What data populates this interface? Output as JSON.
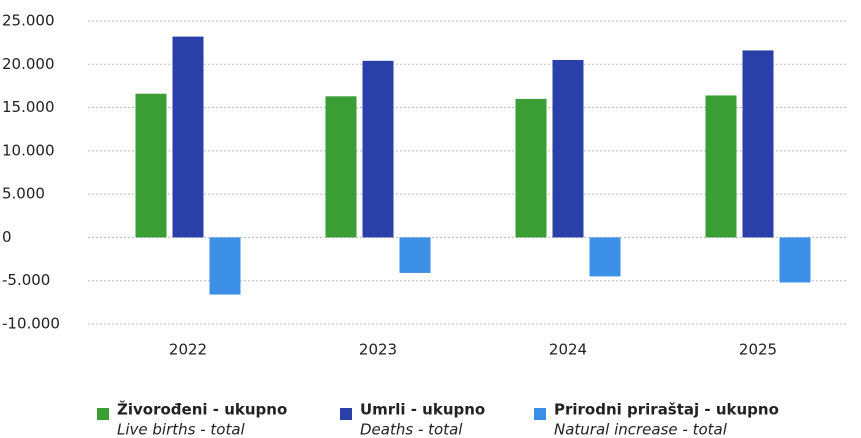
{
  "chart_data": {
    "type": "bar",
    "categories": [
      "2022",
      "2023",
      "2024",
      "2025"
    ],
    "series": [
      {
        "name": "Živorođeni - ukupno",
        "name_en": "Live births - total",
        "color": "#3a9e35",
        "values": [
          16600,
          16300,
          16000,
          16400
        ]
      },
      {
        "name": "Umrli - ukupno",
        "name_en": "Deaths - total",
        "color": "#2a3fa8",
        "values": [
          23200,
          20400,
          20500,
          21600
        ]
      },
      {
        "name": "Prirodni priraštaj - ukupno",
        "name_en": "Natural increase - total",
        "color": "#3b8fe6",
        "values": [
          -6600,
          -4100,
          -4500,
          -5200
        ]
      }
    ],
    "ylim": [
      -10000,
      25000
    ],
    "yticks": [
      {
        "value": -10000,
        "label": "-10.000"
      },
      {
        "value": -5000,
        "label": "-5.000"
      },
      0,
      {
        "value": 5000,
        "label": "5.000"
      },
      {
        "value": 10000,
        "label": "10.000"
      },
      {
        "value": 15000,
        "label": "15.000"
      },
      {
        "value": 20000,
        "label": "20.000"
      },
      {
        "value": 25000,
        "label": "25.000"
      }
    ],
    "grid": true,
    "legend": "bottom"
  }
}
